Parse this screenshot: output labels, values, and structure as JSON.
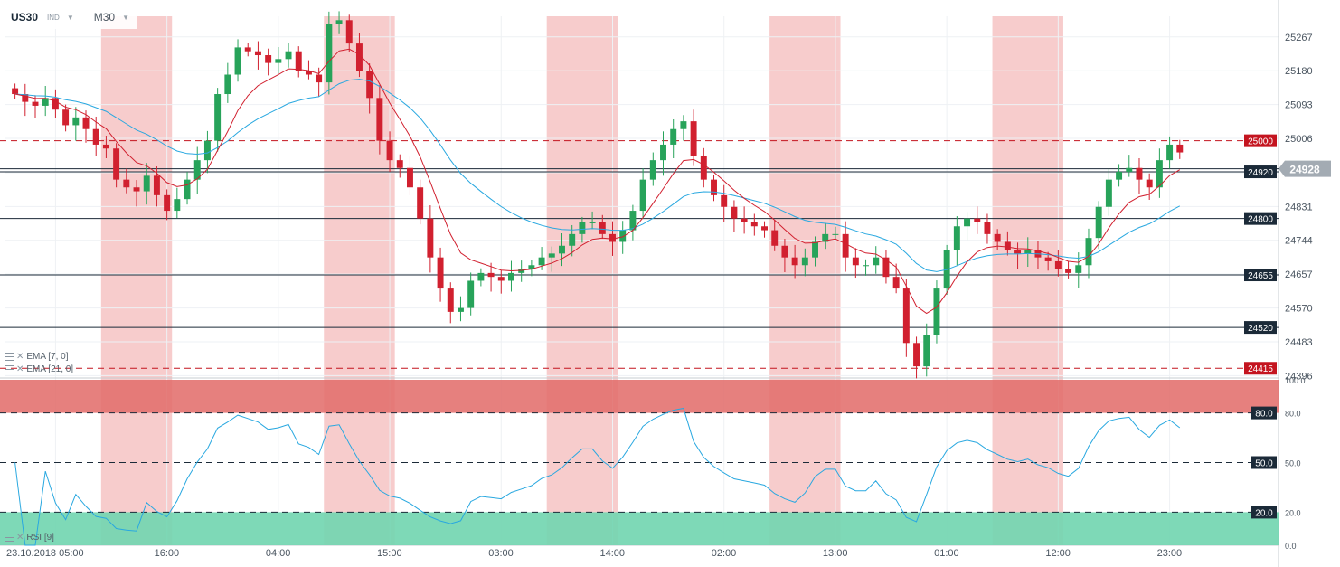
{
  "header": {
    "symbol": "US30",
    "symbol_type": "IND",
    "timeframe": "M30"
  },
  "indicators": {
    "ema7": "EMA [7, 0]",
    "ema21": "EMA [21, 0]",
    "rsi": "RSI [9]"
  },
  "colors": {
    "bull": "#27a35a",
    "bear": "#d1202f",
    "ema7": "#d1202f",
    "ema21": "#29a8e0",
    "rsi": "#29a8e0",
    "session_band": "#f7cccc",
    "overbought_zone": "#e36e6c",
    "oversold_zone": "#73d6b1",
    "current_price_tag": "#a3abb3",
    "dashed_level_tag": "#c4141f",
    "solid_level_tag": "#1b2a38"
  },
  "price_levels": [
    {
      "value": 25000,
      "label": "25000",
      "style": "dashed"
    },
    {
      "value": 24920,
      "label": "24920",
      "style": "solid"
    },
    {
      "value": 24800,
      "label": "24800",
      "style": "solid"
    },
    {
      "value": 24655,
      "label": "24655",
      "style": "solid"
    },
    {
      "value": 24520,
      "label": "24520",
      "style": "solid"
    },
    {
      "value": 24415,
      "label": "24415",
      "style": "dashed"
    }
  ],
  "current_price": {
    "value": 24928,
    "label": "24928"
  },
  "rsi_levels": [
    {
      "value": 80,
      "label": "80.0"
    },
    {
      "value": 50,
      "label": "50.0"
    },
    {
      "value": 20,
      "label": "20.0"
    }
  ],
  "chart_data": {
    "type": "candlestick",
    "price_axis": {
      "ticks": [
        "25267",
        "25180",
        "25093",
        "25006",
        "24918",
        "24831",
        "24744",
        "24657",
        "24570",
        "24483",
        "24396"
      ],
      "range": [
        24390,
        25320
      ]
    },
    "rsi_axis": {
      "ticks": [
        "100.0",
        "80.0",
        "50.0",
        "20.0",
        "0.0"
      ],
      "range": [
        0,
        100
      ]
    },
    "time_axis": {
      "labels": [
        "23.10.2018  05:00",
        "16:00",
        "04:00",
        "15:00",
        "03:00",
        "14:00",
        "02:00",
        "13:00",
        "01:00",
        "12:00",
        "23:00"
      ]
    },
    "session_bands": [
      [
        9,
        15
      ],
      [
        31,
        37
      ],
      [
        53,
        59
      ],
      [
        75,
        81
      ],
      [
        97,
        103
      ]
    ],
    "candle_closes": [
      25120,
      25100,
      25090,
      25110,
      25080,
      25040,
      25060,
      25030,
      24990,
      24980,
      24900,
      24880,
      24870,
      24910,
      24860,
      24820,
      24850,
      24900,
      24950,
      25000,
      25120,
      25170,
      25240,
      25230,
      25220,
      25200,
      25210,
      25230,
      25180,
      25170,
      25150,
      25300,
      25310,
      25250,
      25180,
      25110,
      25000,
      24950,
      24930,
      24880,
      24800,
      24700,
      24620,
      24560,
      24570,
      24640,
      24660,
      24650,
      24640,
      24660,
      24670,
      24680,
      24700,
      24710,
      24730,
      24760,
      24790,
      24790,
      24760,
      24740,
      24770,
      24820,
      24900,
      24950,
      24990,
      25030,
      25050,
      24960,
      24900,
      24860,
      24830,
      24800,
      24790,
      24780,
      24770,
      24730,
      24700,
      24680,
      24700,
      24740,
      24760,
      24760,
      24700,
      24680,
      24680,
      24700,
      24650,
      24620,
      24480,
      24420,
      24500,
      24620,
      24720,
      24780,
      24800,
      24790,
      24760,
      24740,
      24720,
      24710,
      24720,
      24700,
      24690,
      24670,
      24660,
      24680,
      24750,
      24830,
      24900,
      24920,
      24930,
      24900,
      24880,
      24950,
      24990,
      24970
    ]
  }
}
